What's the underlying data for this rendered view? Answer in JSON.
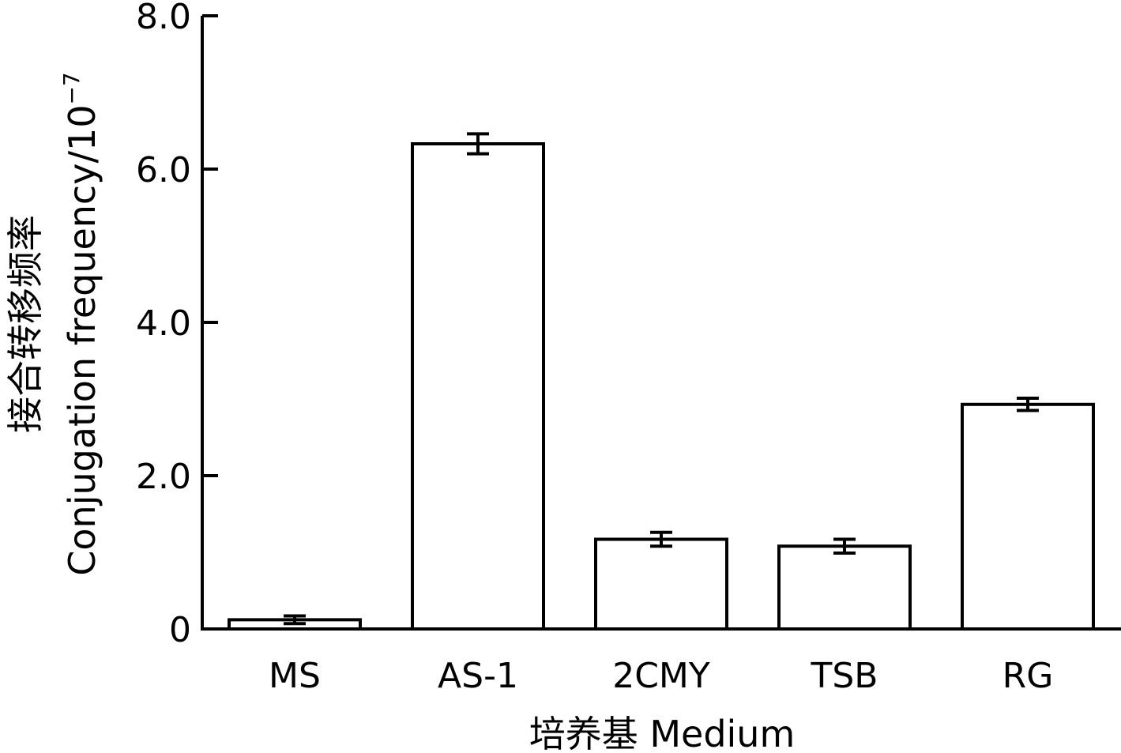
{
  "chart_data": {
    "type": "bar",
    "categories": [
      "MS",
      "AS-1",
      "2CMY",
      "TSB",
      "RG"
    ],
    "values": [
      0.12,
      6.33,
      1.17,
      1.08,
      2.93
    ],
    "errors": [
      0.05,
      0.13,
      0.09,
      0.09,
      0.08
    ],
    "xlabel": "培养基 Medium",
    "ylabel_cn": "接合转移频率",
    "ylabel_en": "Conjugation frequency/10",
    "ylabel_exp": "−7",
    "ylim": [
      0,
      8
    ],
    "yticks": [
      0,
      2,
      4,
      6,
      8
    ],
    "ytick_labels": [
      "0",
      "2.0",
      "4.0",
      "6.0",
      "8.0"
    ],
    "grid": false,
    "bar_fill": "#ffffff",
    "bar_stroke": "#000000"
  }
}
